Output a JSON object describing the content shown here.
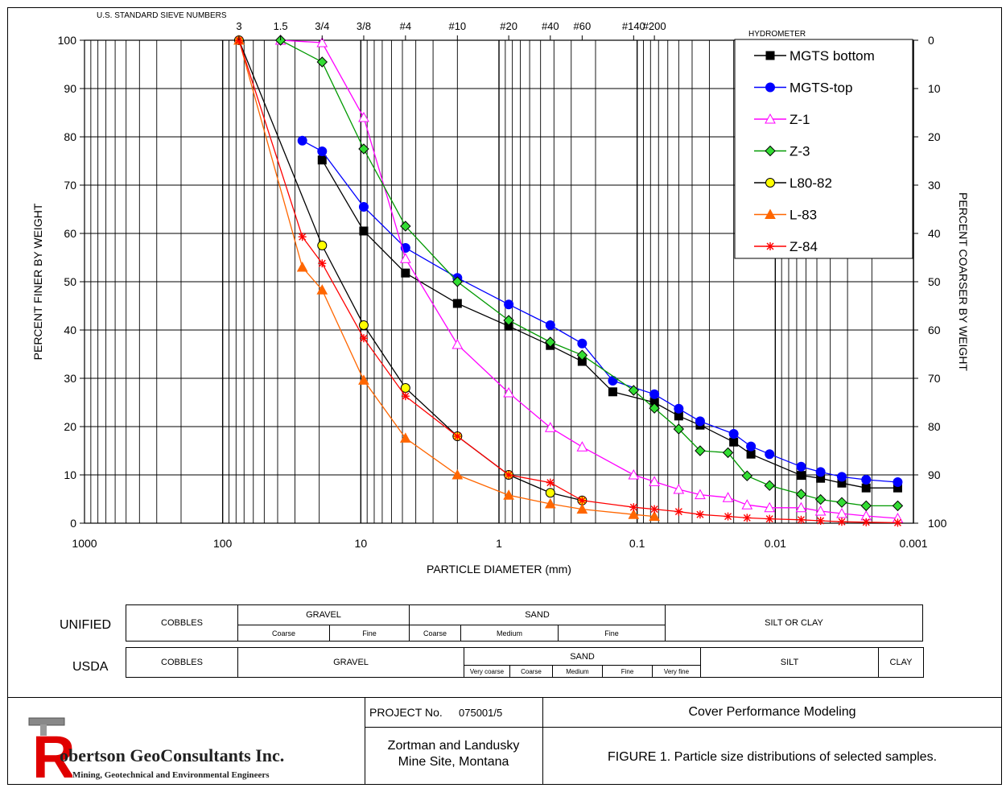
{
  "chart_data": {
    "type": "line",
    "x_scale": "log",
    "x_axis_reversed": true,
    "xlim": [
      1000,
      0.001
    ],
    "ylim": [
      0,
      100
    ],
    "y2lim": [
      100,
      0
    ],
    "xlabel": "PARTICLE DIAMETER (mm)",
    "ylabel": "PERCENT FINER BY WEIGHT",
    "y2label": "PERCENT COARSER BY WEIGHT",
    "x_tick_labels": [
      "1000",
      "100",
      "10",
      "1",
      "0.1",
      "0.01",
      "0.001"
    ],
    "y_tick_labels": [
      "0",
      "10",
      "20",
      "30",
      "40",
      "50",
      "60",
      "70",
      "80",
      "90",
      "100"
    ],
    "y2_tick_labels": [
      "100",
      "90",
      "80",
      "70",
      "60",
      "50",
      "40",
      "30",
      "20",
      "10",
      "0"
    ],
    "sieve_title": "U.S. STANDARD SIEVE NUMBERS",
    "hydrometer_label": "HYDROMETER",
    "sieves": [
      {
        "label": "3",
        "size": 76.2
      },
      {
        "label": "1.5",
        "size": 38.1
      },
      {
        "label": "3/4",
        "size": 19.05
      },
      {
        "label": "3/8",
        "size": 9.525
      },
      {
        "label": "#4",
        "size": 4.75
      },
      {
        "label": "#10",
        "size": 2.0
      },
      {
        "label": "#20",
        "size": 0.85
      },
      {
        "label": "#40",
        "size": 0.425
      },
      {
        "label": "#60",
        "size": 0.25
      },
      {
        "label": "#140",
        "size": 0.106
      },
      {
        "label": "#200",
        "size": 0.075
      }
    ],
    "grid": true,
    "legend_position": "top-right",
    "series": [
      {
        "name": "MGTS bottom",
        "color": "#000000",
        "marker": "square",
        "x": [
          19.05,
          9.525,
          4.75,
          2.0,
          0.85,
          0.425,
          0.25,
          0.15,
          0.075,
          0.05,
          0.035,
          0.02,
          0.015,
          0.0065,
          0.0047,
          0.0033,
          0.0022,
          0.0013
        ],
        "y": [
          75.2,
          60.5,
          51.8,
          45.5,
          40.8,
          36.8,
          33.5,
          27.2,
          25.0,
          22.2,
          20.3,
          16.8,
          14.3,
          9.9,
          9.3,
          8.3,
          7.3,
          7.3
        ]
      },
      {
        "name": "MGTS-top",
        "color": "#0000ff",
        "marker": "circle",
        "x": [
          26.5,
          19.05,
          9.525,
          4.75,
          2.0,
          0.85,
          0.425,
          0.25,
          0.15,
          0.075,
          0.05,
          0.035,
          0.02,
          0.015,
          0.011,
          0.0065,
          0.0047,
          0.0033,
          0.0022,
          0.0013
        ],
        "y": [
          79.2,
          77.0,
          65.5,
          57.0,
          50.8,
          45.3,
          41.0,
          37.2,
          29.5,
          26.7,
          23.7,
          21.1,
          18.5,
          15.9,
          14.3,
          11.7,
          10.6,
          9.6,
          9.0,
          8.5
        ]
      },
      {
        "name": "Z-1",
        "color": "#ff00ff",
        "marker": "triangle-open",
        "x": [
          38.1,
          19.05,
          9.525,
          4.75,
          2.0,
          0.85,
          0.425,
          0.25,
          0.106,
          0.075,
          0.05,
          0.035,
          0.022,
          0.016,
          0.011,
          0.0065,
          0.0047,
          0.0033,
          0.0022,
          0.0013
        ],
        "y": [
          100.0,
          99.5,
          84.0,
          54.8,
          37.0,
          27.0,
          19.8,
          15.8,
          10.0,
          8.6,
          7.0,
          5.9,
          5.3,
          3.8,
          3.2,
          3.2,
          2.5,
          2.0,
          1.5,
          1.0
        ]
      },
      {
        "name": "Z-3",
        "color": "#009900",
        "fill": "#33dd33",
        "marker": "diamond",
        "x": [
          38.1,
          19.05,
          9.525,
          4.75,
          2.0,
          0.85,
          0.425,
          0.25,
          0.106,
          0.075,
          0.05,
          0.035,
          0.022,
          0.016,
          0.011,
          0.0065,
          0.0047,
          0.0033,
          0.0022,
          0.0013
        ],
        "y": [
          100.0,
          95.5,
          77.5,
          61.5,
          50.0,
          42.0,
          37.5,
          34.8,
          27.5,
          23.8,
          19.5,
          15.0,
          14.6,
          9.8,
          7.8,
          6.0,
          4.9,
          4.3,
          3.6,
          3.6
        ]
      },
      {
        "name": "L80-82",
        "color": "#000000",
        "fill": "#ffff00",
        "marker": "circle",
        "x": [
          76.2,
          19.05,
          9.525,
          4.75,
          2.0,
          0.85,
          0.425,
          0.25
        ],
        "y": [
          100.0,
          57.5,
          41.0,
          28.0,
          18.0,
          10.0,
          6.3,
          4.7
        ]
      },
      {
        "name": "L-83",
        "color": "#ff6600",
        "marker": "triangle",
        "x": [
          76.2,
          26.5,
          19.05,
          9.525,
          4.75,
          2.0,
          0.85,
          0.425,
          0.25,
          0.106,
          0.075
        ],
        "y": [
          100.0,
          53.0,
          48.3,
          29.6,
          17.6,
          10.0,
          5.8,
          4.0,
          2.9,
          1.8,
          1.4
        ]
      },
      {
        "name": "Z-84",
        "color": "#ff0000",
        "marker": "asterisk",
        "x": [
          76.2,
          26.5,
          19.05,
          9.525,
          4.75,
          2.0,
          0.85,
          0.425,
          0.25,
          0.106,
          0.075,
          0.05,
          0.035,
          0.022,
          0.016,
          0.011,
          0.0065,
          0.0047,
          0.0033,
          0.0022,
          0.0013
        ],
        "y": [
          100.0,
          59.3,
          53.8,
          38.3,
          26.3,
          18.0,
          10.0,
          8.4,
          4.7,
          3.3,
          2.9,
          2.4,
          1.8,
          1.4,
          1.1,
          0.9,
          0.7,
          0.5,
          0.3,
          0.2,
          0.1
        ]
      }
    ]
  },
  "classification": {
    "unified_label": "UNIFIED",
    "usda_label": "USDA",
    "unified": {
      "cobbles": "COBBLES",
      "gravel": "GRAVEL",
      "sand": "SAND",
      "silt_clay": "SILT OR CLAY",
      "gravel_coarse": "Coarse",
      "gravel_fine": "Fine",
      "sand_coarse": "Coarse",
      "sand_medium": "Medium",
      "sand_fine": "Fine"
    },
    "usda": {
      "cobbles": "COBBLES",
      "gravel": "GRAVEL",
      "sand": "SAND",
      "silt": "SILT",
      "clay": "CLAY",
      "very_coarse": "Very coarse",
      "coarse": "Coarse",
      "medium": "Medium",
      "fine": "Fine",
      "very_fine": "Very fine"
    }
  },
  "title_block": {
    "company_logo_letter": "R",
    "company_name": "obertson GeoConsultants Inc.",
    "company_subtitle": "Mining, Geotechnical and Environmental Engineers",
    "project_label": "PROJECT No.",
    "project_number": "075001/5",
    "project_title": "Cover Performance Modeling",
    "site_line1": "Zortman and Landusky",
    "site_line2": "Mine Site, Montana",
    "figure_caption": "FIGURE 1. Particle size distributions of selected samples."
  }
}
